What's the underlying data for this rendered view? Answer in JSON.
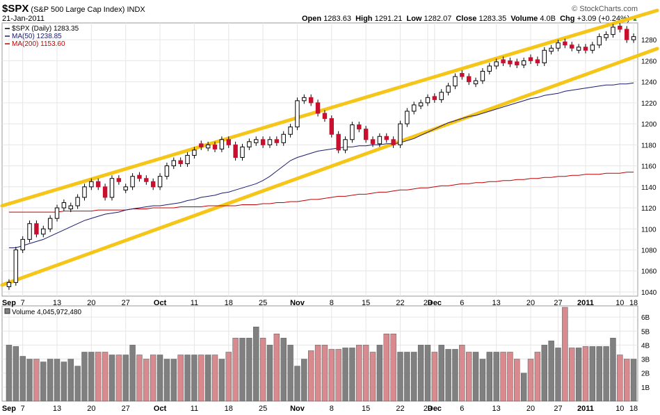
{
  "header": {
    "symbol": "$SPX",
    "name": "(S&P 500 Large Cap Index)",
    "exchange": "INDX",
    "date": "21-Jan-2011",
    "open_label": "Open",
    "open_value": "1283.63",
    "high_label": "High",
    "high_value": "1291.21",
    "low_label": "Low",
    "low_value": "1282.07",
    "close_label": "Close",
    "close_value": "1283.35",
    "volume_label": "Volume",
    "volume_value": "4.0B",
    "chg_label": "Chg",
    "chg_value": "+3.09 (+0.24%)",
    "watermark": "© StockCharts.com"
  },
  "colors": {
    "up": "#ffffff",
    "down": "#c8102e",
    "ma50": "#1a1a6e",
    "ma200": "#c00000",
    "channel": "#f5c518",
    "vol_up": "#808080",
    "vol_down": "#d98a8e",
    "grid": "#e6e6e6"
  },
  "chart_data": {
    "type": "candlestick",
    "legend": [
      {
        "label": "$SPX (Daily) 1283.35",
        "color": "#000000"
      },
      {
        "label": "MA(50) 1238.85",
        "color": "#1a1a6e"
      },
      {
        "label": "MA(200) 1153.60",
        "color": "#c00000"
      }
    ],
    "volume_label": "Volume 4,045,972,480",
    "x_ticks": [
      "Sep",
      "7",
      "13",
      "20",
      "27",
      "Oct",
      "11",
      "18",
      "25",
      "Nov",
      "8",
      "15",
      "22",
      "29",
      "Dec",
      "6",
      "13",
      "20",
      "27",
      "2011",
      "10",
      "18"
    ],
    "y_ticks": [
      1040,
      1060,
      1080,
      1100,
      1120,
      1140,
      1160,
      1180,
      1200,
      1220,
      1240,
      1260,
      1280
    ],
    "ylim": [
      1036,
      1296
    ],
    "vol_ticks": [
      "1B",
      "2B",
      "3B",
      "4B",
      "5B",
      "6B"
    ],
    "vol_ylim": [
      0,
      6.8
    ],
    "close": [
      1049,
      1080,
      1090,
      1105,
      1095,
      1100,
      1110,
      1120,
      1125,
      1122,
      1130,
      1140,
      1145,
      1140,
      1130,
      1148,
      1145,
      1140,
      1150,
      1148,
      1145,
      1140,
      1150,
      1160,
      1165,
      1162,
      1170,
      1175,
      1178,
      1180,
      1176,
      1185,
      1180,
      1168,
      1178,
      1183,
      1185,
      1180,
      1185,
      1182,
      1190,
      1197,
      1222,
      1225,
      1220,
      1210,
      1205,
      1190,
      1175,
      1185,
      1199,
      1195,
      1185,
      1181,
      1188,
      1185,
      1180,
      1200,
      1212,
      1218,
      1220,
      1225,
      1223,
      1230,
      1236,
      1245,
      1245,
      1240,
      1241,
      1250,
      1255,
      1259,
      1258,
      1257,
      1256,
      1260,
      1260,
      1258,
      1270,
      1272,
      1277,
      1275,
      1272,
      1273,
      1270,
      1275,
      1283,
      1285,
      1292,
      1290,
      1280,
      1283
    ],
    "up": [
      true,
      true,
      true,
      true,
      false,
      true,
      true,
      true,
      true,
      true,
      true,
      true,
      true,
      false,
      false,
      true,
      false,
      true,
      true,
      false,
      false,
      false,
      true,
      true,
      true,
      false,
      true,
      true,
      false,
      true,
      false,
      true,
      false,
      false,
      true,
      true,
      true,
      false,
      true,
      false,
      true,
      true,
      true,
      true,
      false,
      false,
      false,
      false,
      false,
      true,
      true,
      false,
      false,
      false,
      true,
      false,
      false,
      true,
      true,
      true,
      true,
      true,
      false,
      true,
      true,
      true,
      false,
      false,
      true,
      true,
      true,
      true,
      false,
      false,
      false,
      true,
      false,
      false,
      true,
      true,
      true,
      false,
      false,
      true,
      false,
      true,
      true,
      true,
      true,
      false,
      false,
      true
    ],
    "ma50": [
      1082,
      1082,
      1084,
      1086,
      1088,
      1090,
      1093,
      1096,
      1099,
      1102,
      1105,
      1108,
      1110,
      1112,
      1114,
      1115,
      1116,
      1118,
      1119,
      1120,
      1121,
      1122,
      1122,
      1123,
      1124,
      1125,
      1127,
      1128,
      1130,
      1131,
      1132,
      1134,
      1135,
      1137,
      1139,
      1141,
      1143,
      1146,
      1150,
      1155,
      1160,
      1165,
      1168,
      1170,
      1172,
      1174,
      1175,
      1176,
      1177,
      1178,
      1178,
      1179,
      1179,
      1180,
      1180,
      1181,
      1181,
      1182,
      1184,
      1186,
      1189,
      1192,
      1195,
      1198,
      1201,
      1203,
      1205,
      1207,
      1208,
      1210,
      1212,
      1214,
      1216,
      1218,
      1220,
      1222,
      1224,
      1225,
      1227,
      1228,
      1229,
      1231,
      1232,
      1233,
      1234,
      1235,
      1236,
      1237,
      1237,
      1238,
      1238,
      1239
    ],
    "ma200": [
      1116,
      1116,
      1116,
      1116,
      1116,
      1116,
      1116,
      1116,
      1117,
      1117,
      1117,
      1117,
      1117,
      1118,
      1118,
      1118,
      1118,
      1118,
      1119,
      1119,
      1119,
      1120,
      1120,
      1120,
      1120,
      1121,
      1121,
      1121,
      1121,
      1122,
      1122,
      1122,
      1122,
      1122,
      1123,
      1123,
      1123,
      1124,
      1124,
      1125,
      1125,
      1126,
      1126,
      1127,
      1128,
      1128,
      1129,
      1130,
      1131,
      1131,
      1132,
      1133,
      1133,
      1134,
      1135,
      1135,
      1136,
      1137,
      1137,
      1138,
      1139,
      1139,
      1140,
      1141,
      1141,
      1142,
      1143,
      1143,
      1144,
      1144,
      1145,
      1145,
      1146,
      1146,
      1147,
      1147,
      1148,
      1148,
      1149,
      1149,
      1150,
      1150,
      1151,
      1151,
      1152,
      1152,
      1152,
      1153,
      1153,
      1153,
      1154,
      1154
    ],
    "volume": [
      4.0,
      3.9,
      3.2,
      3.0,
      3.0,
      2.8,
      3.0,
      3.0,
      2.8,
      3.0,
      2.5,
      3.5,
      3.5,
      3.5,
      3.5,
      3.3,
      3.3,
      3.3,
      4.0,
      3.3,
      3.0,
      3.3,
      3.3,
      3.0,
      3.0,
      3.3,
      3.3,
      3.3,
      3.3,
      3.3,
      3.3,
      3.0,
      3.5,
      4.5,
      4.5,
      4.5,
      5.3,
      4.5,
      4.0,
      4.8,
      4.5,
      4.0,
      2.5,
      3.0,
      3.6,
      4.0,
      4.0,
      3.7,
      3.7,
      3.8,
      3.8,
      4.0,
      4.0,
      3.5,
      4.0,
      4.8,
      4.8,
      3.5,
      3.5,
      3.5,
      4.0,
      4.0,
      3.5,
      4.0,
      3.7,
      3.7,
      4.0,
      3.5,
      3.5,
      3.0,
      3.5,
      3.5,
      3.5,
      3.5,
      3.0,
      2.0,
      3.0,
      3.5,
      4.0,
      4.3,
      3.8,
      6.7,
      3.8,
      3.8,
      3.9,
      3.9,
      3.9,
      3.9,
      4.5,
      3.3,
      3.0,
      3.0
    ],
    "volume_note": "daily volume in billions, estimated"
  }
}
